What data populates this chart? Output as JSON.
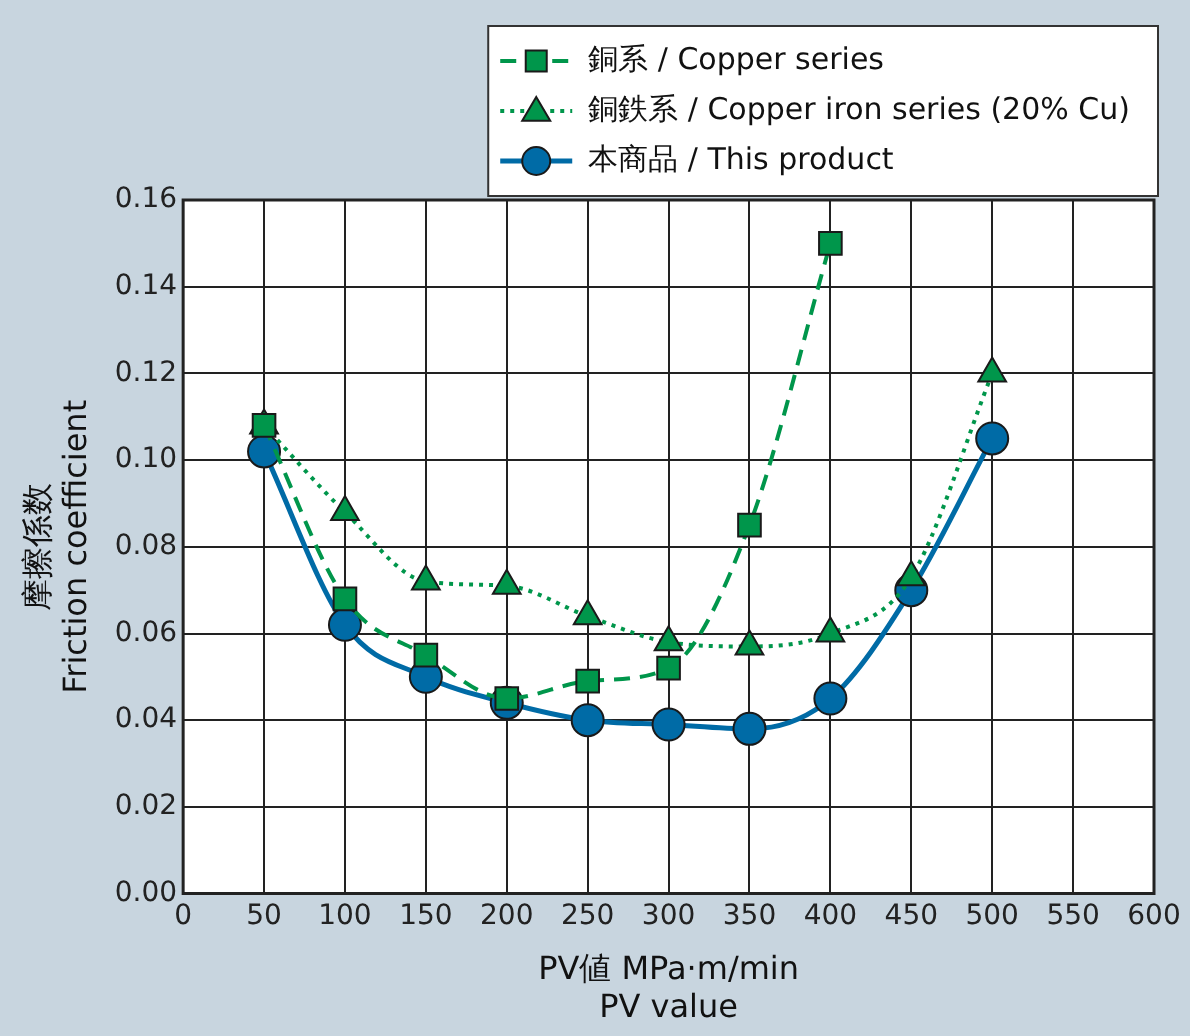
{
  "chart_data": {
    "type": "line",
    "xlabel": [
      "PV値 MPa·m/min",
      "PV value"
    ],
    "ylabel": [
      "摩擦係数",
      "Friction coefficient"
    ],
    "x": [
      50,
      100,
      150,
      200,
      250,
      300,
      350,
      400,
      450,
      500
    ],
    "series": [
      {
        "name": "銅系 / Copper series",
        "color": "#00964b",
        "marker": "square",
        "line_style": "dashed",
        "values": [
          0.108,
          0.068,
          0.055,
          0.045,
          0.049,
          0.052,
          0.085,
          0.15,
          null,
          null
        ]
      },
      {
        "name": "銅鉄系 / Copper iron series (20% Cu)",
        "color": "#00964b",
        "marker": "triangle",
        "line_style": "dotted",
        "values": [
          0.108,
          0.088,
          0.072,
          0.071,
          0.064,
          0.058,
          0.057,
          0.06,
          0.073,
          0.12
        ]
      },
      {
        "name": "本商品 / This product",
        "color": "#006ba6",
        "marker": "circle",
        "line_style": "solid",
        "values": [
          0.102,
          0.062,
          0.05,
          0.044,
          0.04,
          0.039,
          0.038,
          0.045,
          0.07,
          0.105
        ]
      }
    ],
    "xlim": [
      0,
      600
    ],
    "xticks": [
      0,
      50,
      100,
      150,
      200,
      250,
      300,
      350,
      400,
      450,
      500,
      550,
      600
    ],
    "ylim": [
      0,
      0.16
    ],
    "yticks": [
      {
        "value": 0,
        "label": "0.00"
      },
      {
        "value": 0.02,
        "label": "0.02"
      },
      {
        "value": 0.04,
        "label": "0.04"
      },
      {
        "value": 0.06,
        "label": "0.06"
      },
      {
        "value": 0.08,
        "label": "0.08"
      },
      {
        "value": 0.1,
        "label": "0.10"
      },
      {
        "value": 0.12,
        "label": "0.12"
      },
      {
        "value": 0.14,
        "label": "0.14"
      },
      {
        "value": 0.16,
        "label": "0.16"
      }
    ],
    "grid": true,
    "legend": "top right"
  }
}
